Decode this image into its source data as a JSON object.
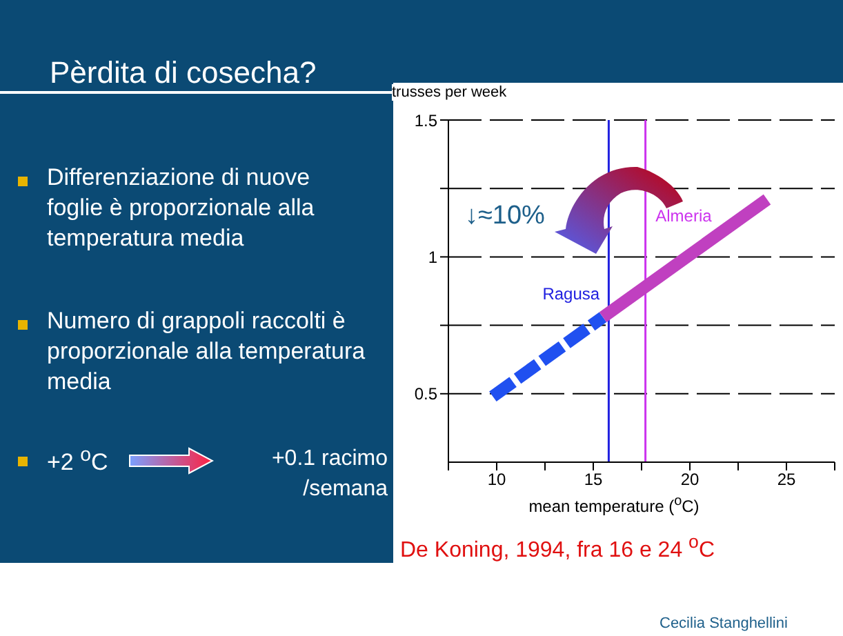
{
  "chart_data": {
    "type": "line",
    "title": "Pèrdita di cosecha?",
    "xlabel": "mean temperature ($^{o}$C)",
    "ylabel": "trusses per week",
    "series": [
      {
        "color": "#2050f0",
        "line_style": "dashed",
        "x": [
          9.8,
          15.5
        ],
        "values": [
          0.49,
          0.78
        ]
      },
      {
        "color": "#c040c0",
        "line_style": "solid",
        "x": [
          15.5,
          24
        ],
        "values": [
          0.78,
          1.21
        ]
      }
    ],
    "xlim": [
      7.5,
      27.5
    ],
    "xticks": [
      {
        "value": 7.5,
        "label": null
      },
      10,
      {
        "value": 12.5,
        "label": null
      },
      15,
      {
        "value": 17.5,
        "label": null
      },
      20,
      {
        "value": 22.5,
        "label": null
      },
      25,
      {
        "value": 27.5,
        "label": null
      }
    ],
    "ylim": [
      0.25,
      1.5
    ],
    "yticks": [
      0.5,
      {
        "value": 0.75,
        "label": null
      },
      1,
      {
        "value": 1.25,
        "label": null
      },
      1.5
    ],
    "grid": "y",
    "marker": "none",
    "ref_lines": [
      {
        "axis": "x",
        "value": 15.8,
        "label": "Ragusa",
        "color": "#2020e0"
      },
      {
        "axis": "x",
        "value": 17.7,
        "label": "Almeria",
        "color": "#cc33ee"
      }
    ],
    "annotations": [
      "Differenziazione di nuove foglie è proporzionale alla temperatura media",
      "Numero di grappoli raccolti è proporzionale alla temperatura media",
      "+2 $^{o}$C",
      "+0.1 racimo /semana",
      "↓≈10%",
      "De Koning, 1994, fra 16 e 24 $^{o}$C",
      "Cecilia Stanghellini"
    ]
  }
}
